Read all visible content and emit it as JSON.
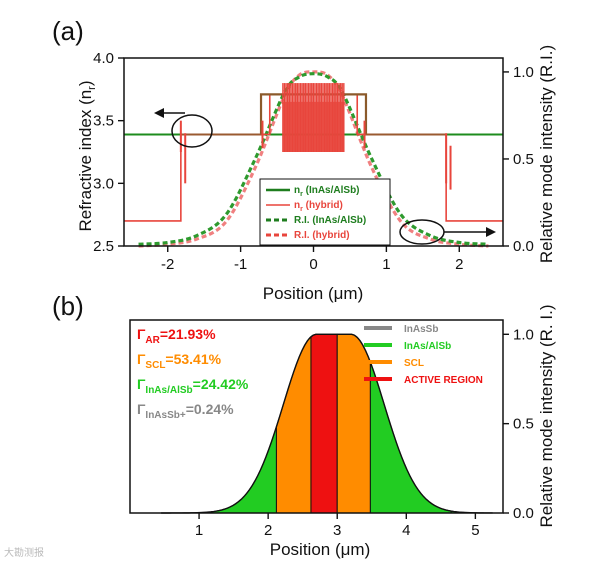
{
  "chart_data": [
    {
      "panel_label": "(a)",
      "type": "line",
      "xlabel": "Position (μm)",
      "ylabel": "Refractive index (n",
      "ylabel_sub": "r",
      "ylabel_close": ")",
      "ylabel_right": "Relative mode intensity (R.I.)",
      "xlim": [
        -2.6,
        2.6
      ],
      "ylim": [
        2.5,
        4.0
      ],
      "ylim_right": [
        0.0,
        1.08
      ],
      "x_ticks": [
        -2,
        -1,
        0,
        1,
        2
      ],
      "x_tick_labels": [
        "-2",
        "-1",
        "0",
        "1",
        "2"
      ],
      "y_ticks": [
        2.5,
        3.0,
        3.5,
        4.0
      ],
      "y_tick_labels": [
        "2.5",
        "3.0",
        "3.5",
        "4.0"
      ],
      "y_right_ticks": [
        0.0,
        0.5,
        1.0
      ],
      "y_right_tick_labels": [
        "0.0",
        "0.5",
        "1.0"
      ],
      "legend_location": "center-right",
      "legend": [
        {
          "label": "n",
          "sub": "r",
          "suffix": " (InAs/AlSb)",
          "color": "#1e7d1e",
          "style": "solid"
        },
        {
          "label": "n",
          "sub": "r",
          "suffix": " (hybrid)",
          "color": "#e8453c",
          "style": "solid"
        },
        {
          "label": "R.I. (InAs/AlSb)",
          "sub": "",
          "suffix": "",
          "color": "#1e7d1e",
          "style": "dash"
        },
        {
          "label": "R.I. (hybrid)",
          "sub": "",
          "suffix": "",
          "color": "#e8453c",
          "style": "dash"
        }
      ],
      "series": [
        {
          "name": "nr (InAs/AlSb)",
          "color": "#1e8c1e",
          "axis": "left",
          "x": [
            -2.6,
            -0.72,
            -0.72,
            0.72,
            0.72,
            2.6
          ],
          "y": [
            3.39,
            3.39,
            3.39,
            3.39,
            3.39,
            3.39
          ]
        },
        {
          "name": "nr (hybrid)",
          "color": "#e8453c",
          "axis": "left",
          "x": [
            -2.6,
            -1.82,
            -1.82,
            -0.72,
            -0.72,
            -0.6,
            -0.6,
            0.6,
            0.6,
            0.72,
            0.72,
            1.82,
            1.82,
            2.6
          ],
          "y": [
            2.7,
            2.7,
            3.39,
            3.39,
            3.39,
            3.39,
            3.71,
            3.71,
            3.39,
            3.39,
            3.39,
            3.39,
            2.7,
            2.7
          ]
        },
        {
          "name": "R.I. (InAs/AlSb)",
          "color": "#1e8c1e",
          "axis": "right",
          "x": [
            -2.4,
            -2.0,
            -1.6,
            -1.2,
            -0.8,
            -0.4,
            -0.2,
            0.0,
            0.2,
            0.4,
            0.8,
            1.2,
            1.6,
            2.0,
            2.4
          ],
          "y": [
            0.01,
            0.02,
            0.06,
            0.18,
            0.5,
            0.88,
            0.97,
            0.99,
            0.97,
            0.88,
            0.5,
            0.18,
            0.06,
            0.02,
            0.01
          ]
        },
        {
          "name": "R.I. (hybrid)",
          "color": "#e8453c",
          "axis": "right",
          "x": [
            -2.4,
            -2.0,
            -1.6,
            -1.2,
            -0.8,
            -0.4,
            -0.2,
            0.0,
            0.2,
            0.4,
            0.8,
            1.2,
            1.6,
            2.0,
            2.4
          ],
          "y": [
            0.0,
            0.01,
            0.04,
            0.14,
            0.45,
            0.86,
            0.98,
            1.0,
            0.98,
            0.86,
            0.45,
            0.14,
            0.04,
            0.01,
            0.0
          ]
        }
      ]
    },
    {
      "panel_label": "(b)",
      "type": "area",
      "xlabel": "Position (μm)",
      "ylabel_right": "Relative mode intensity (R. I.)",
      "xlim": [
        0.0,
        5.4
      ],
      "ylim": [
        0.0,
        1.08
      ],
      "x_ticks": [
        1,
        2,
        3,
        4,
        5
      ],
      "x_tick_labels": [
        "1",
        "2",
        "3",
        "4",
        "5"
      ],
      "y_right_ticks": [
        0.0,
        0.5,
        1.0
      ],
      "y_right_tick_labels": [
        "0.0",
        "0.5",
        "1.0"
      ],
      "mode_peak_x": 2.95,
      "mode_sigma": 0.68,
      "mode_range": [
        0.45,
        5.25
      ],
      "regions": [
        {
          "name": "InAs/AlSb",
          "color": "#22cc22",
          "from": 0.45,
          "to": 2.12
        },
        {
          "name": "SCL",
          "color": "#ff8c00",
          "from": 2.12,
          "to": 2.62
        },
        {
          "name": "ACTIVE REGION",
          "color": "#ee1111",
          "from": 2.62,
          "to": 3.0
        },
        {
          "name": "SCL",
          "color": "#ff8c00",
          "from": 3.0,
          "to": 3.48
        },
        {
          "name": "InAs/AlSb",
          "color": "#22cc22",
          "from": 3.48,
          "to": 4.65
        },
        {
          "name": "InAsSb",
          "color": "#22cc22",
          "from": 4.65,
          "to": 5.25
        }
      ],
      "legend_location": "top-right",
      "legend": [
        {
          "label": "InAsSb",
          "color": "#888888"
        },
        {
          "label": "InAs/AlSb",
          "color": "#22cc22"
        },
        {
          "label": "SCL",
          "color": "#ff8c00"
        },
        {
          "label": "ACTIVE REGION",
          "color": "#ee1111"
        }
      ],
      "confinement_factors": [
        {
          "sub": "AR",
          "value": "=21.93%",
          "color": "#ee1111"
        },
        {
          "sub": "SCL",
          "value": "=53.41%",
          "color": "#ff8c00"
        },
        {
          "sub": "InAs/AlSb",
          "value": "=24.42%",
          "color": "#22cc22"
        },
        {
          "sub": "InAsSb+",
          "value": "=0.24%",
          "color": "#888888"
        }
      ]
    }
  ],
  "watermark": "大勘测报"
}
